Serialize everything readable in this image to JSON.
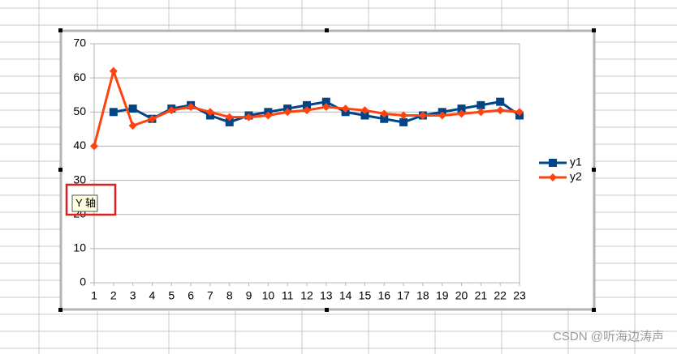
{
  "chart_data": {
    "type": "line",
    "categories": [
      "1",
      "2",
      "3",
      "4",
      "5",
      "6",
      "7",
      "8",
      "9",
      "10",
      "11",
      "12",
      "13",
      "14",
      "15",
      "16",
      "17",
      "18",
      "19",
      "20",
      "21",
      "22",
      "23"
    ],
    "series": [
      {
        "name": "y1",
        "color": "#004586",
        "marker": "square",
        "values": [
          null,
          50,
          51,
          48,
          51,
          52,
          49,
          47,
          49,
          50,
          51,
          52,
          53,
          50,
          49,
          48,
          47,
          49,
          50,
          51,
          52,
          53,
          49
        ]
      },
      {
        "name": "y2",
        "color": "#ff420e",
        "marker": "diamond",
        "values": [
          40,
          62,
          46,
          48,
          50.5,
          51.5,
          50,
          48.5,
          48.5,
          49,
          50,
          50.5,
          51.5,
          51,
          50.5,
          49.5,
          49,
          49,
          49,
          49.5,
          50,
          50.5,
          50
        ]
      }
    ],
    "ylim": [
      0,
      70
    ],
    "yticks": [
      0,
      10,
      20,
      30,
      40,
      50,
      60,
      70
    ],
    "grid": true,
    "legend": "right"
  },
  "tooltip": "Y 轴",
  "watermark": "CSDN @听海边涛声"
}
